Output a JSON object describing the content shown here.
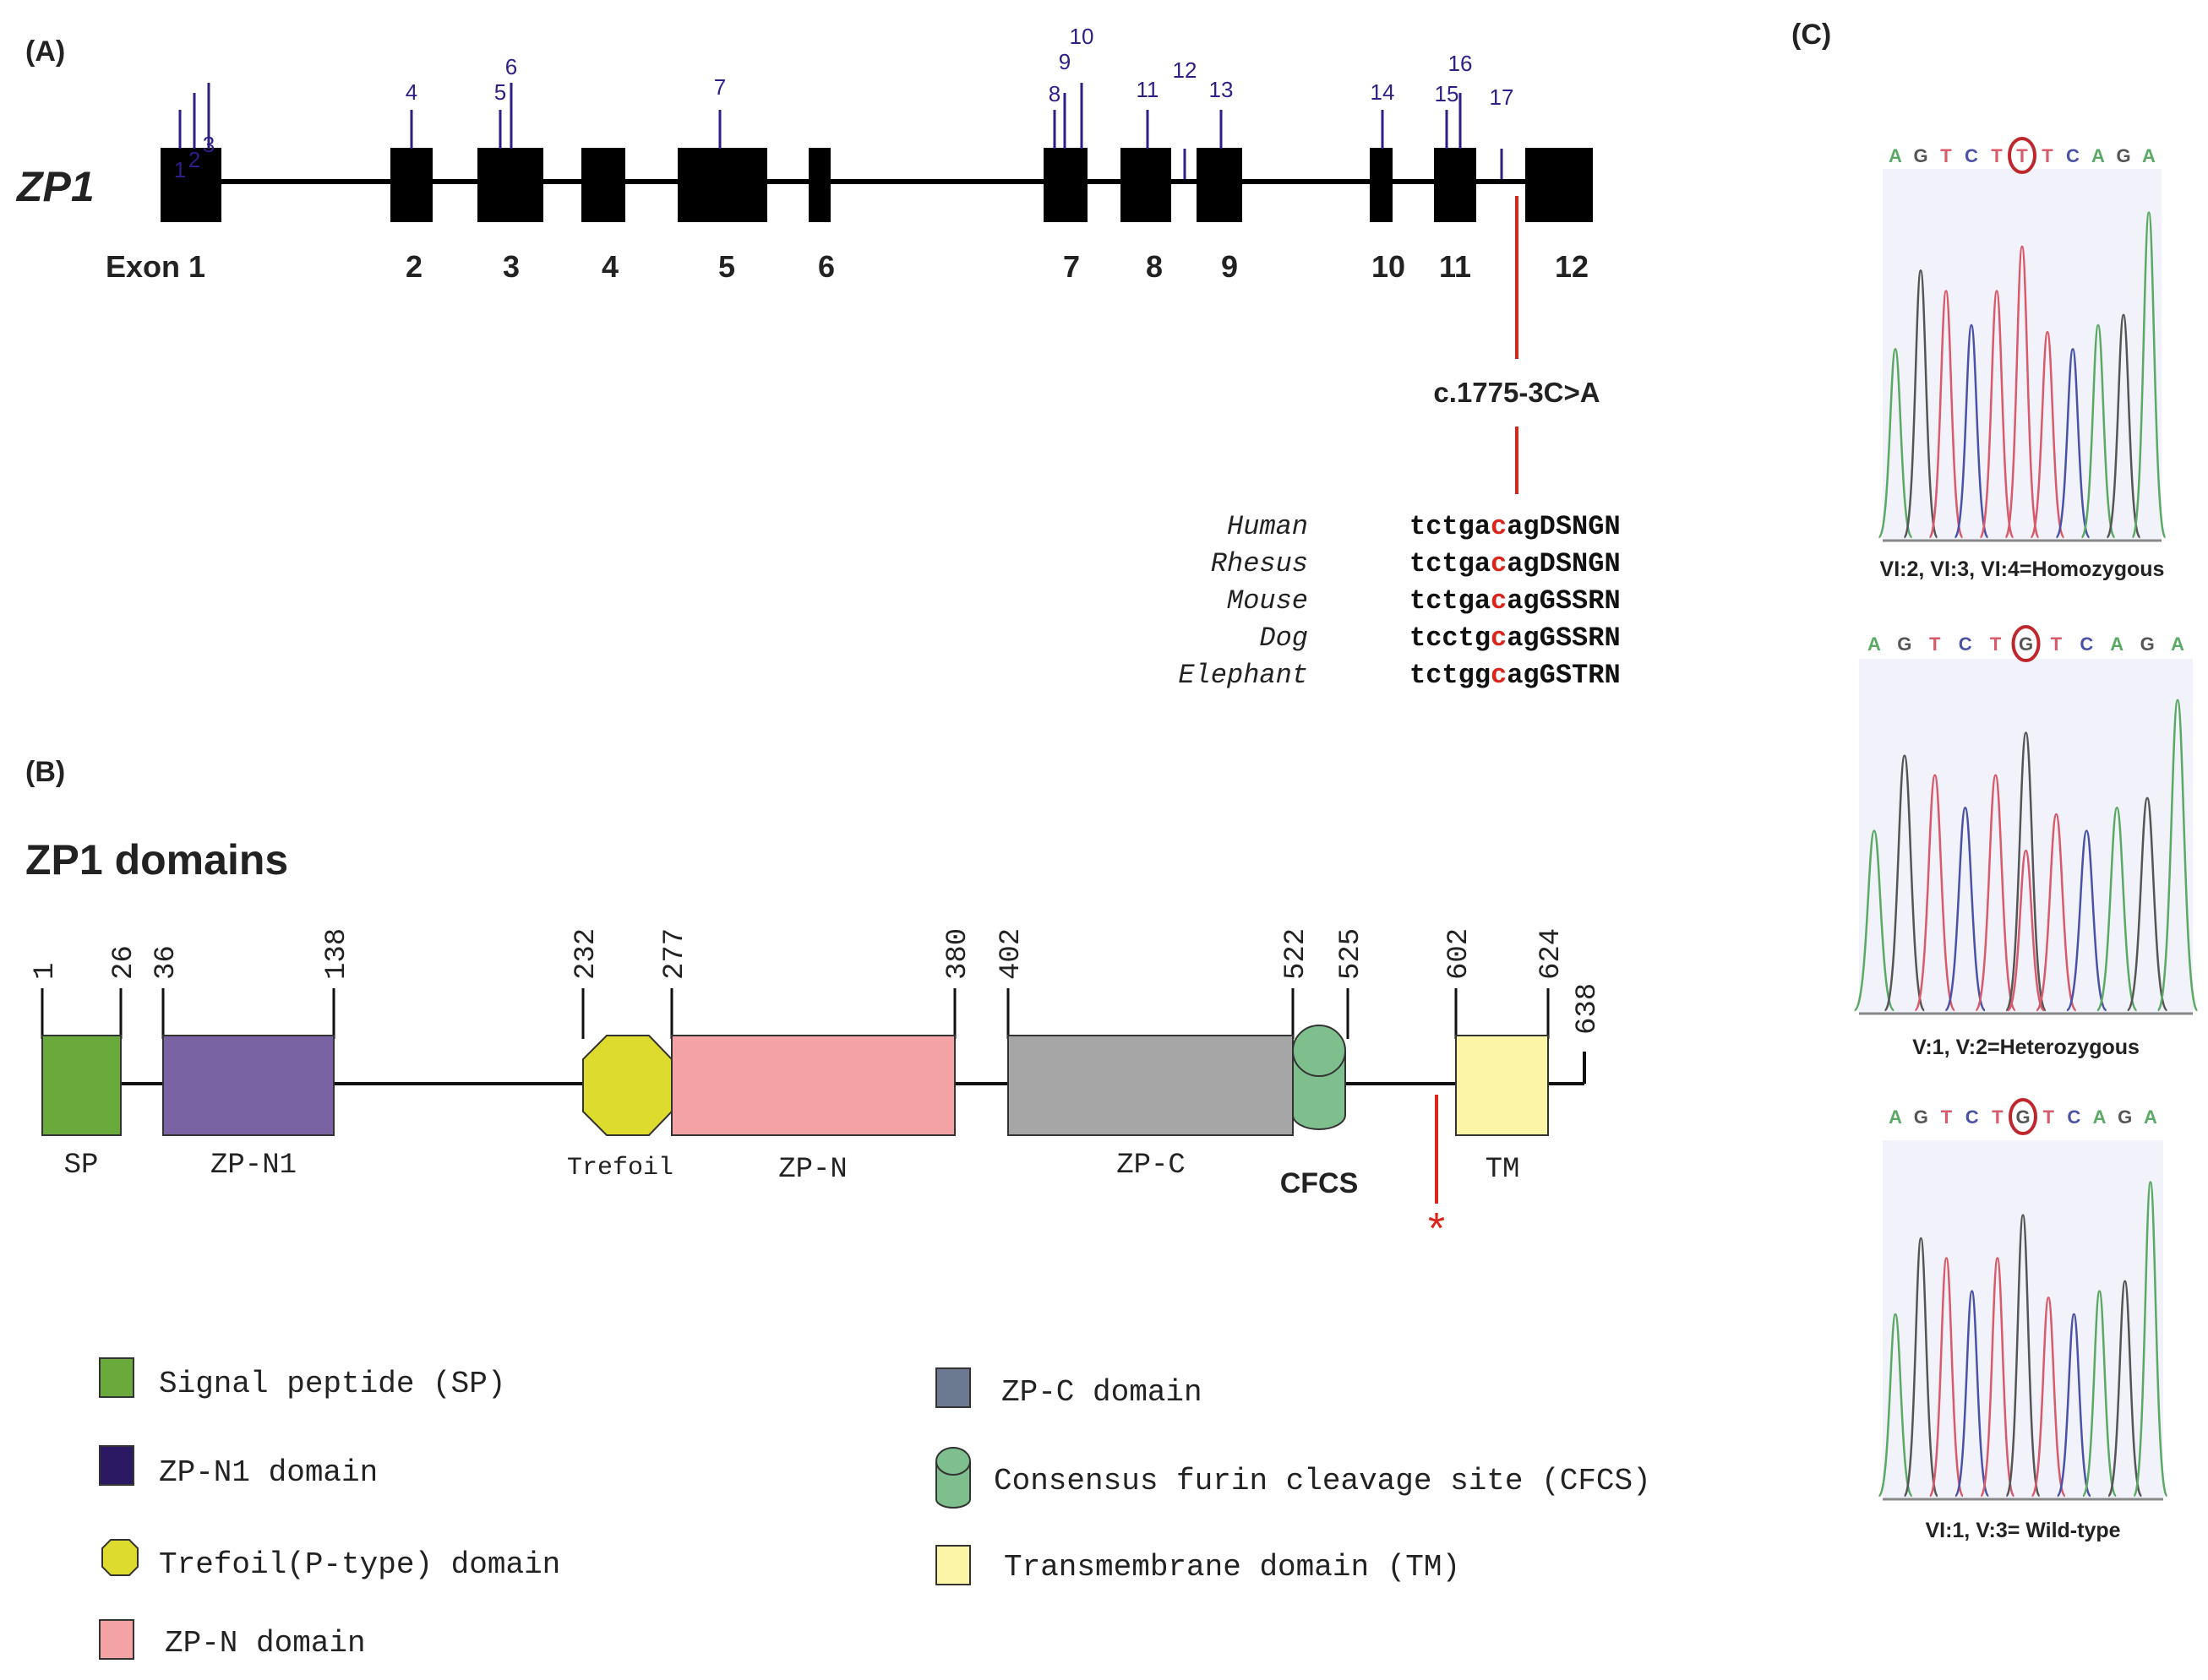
{
  "panels": {
    "a": "(A)",
    "b": "(B)",
    "c": "(C)"
  },
  "colors": {
    "exon": "#000000",
    "site_line": "#2e1f86",
    "mutation": "#d9251c",
    "sp": "#6aaa3c",
    "zpn1": "#7a63a3",
    "zpn1_legend": "#2b1a63",
    "trefoil": "#dcdb2e",
    "zpn": "#f3a3a6",
    "zpc": "#a6a6a6",
    "zpc_legend": "#6b7a91",
    "cfcs": "#7fbf8d",
    "tm": "#fdf5a6",
    "trace_A": "#5aa964",
    "trace_C": "#4a52a8",
    "trace_G": "#555555",
    "trace_T": "#d95a6a",
    "trace_bg": "#e8e8f6"
  },
  "gene": {
    "name": "ZP1",
    "exon_first_label": "Exon 1",
    "exons": [
      "2",
      "3",
      "4",
      "5",
      "6",
      "7",
      "8",
      "9",
      "10",
      "11",
      "12"
    ],
    "sites": [
      "1",
      "2",
      "3",
      "4",
      "5",
      "6",
      "7",
      "8",
      "9",
      "10",
      "11",
      "12",
      "13",
      "14",
      "15",
      "16",
      "17"
    ],
    "mutation": "c.1775-3C>A",
    "alignment": [
      {
        "species": "Human",
        "pre": "tctga",
        "base": "c",
        "post": "agDSNGN"
      },
      {
        "species": "Rhesus",
        "pre": "tctga",
        "base": "c",
        "post": "agDSNGN"
      },
      {
        "species": "Mouse",
        "pre": "tctga",
        "base": "c",
        "post": "agGSSRN"
      },
      {
        "species": "Dog",
        "pre": "tcctg",
        "base": "c",
        "post": "agGSSRN"
      },
      {
        "species": "Elephant",
        "pre": "tctgg",
        "base": "c",
        "post": "agGSTRN"
      }
    ]
  },
  "domains_panel": {
    "title": "ZP1 domains",
    "protein_length": 638,
    "positions": [
      "1",
      "26",
      "36",
      "138",
      "232",
      "277",
      "380",
      "402",
      "522",
      "525",
      "602",
      "624",
      "638"
    ],
    "domains": [
      {
        "key": "sp",
        "label": "SP",
        "start": 1,
        "end": 26
      },
      {
        "key": "zpn1",
        "label": "ZP-N1",
        "start": 36,
        "end": 138
      },
      {
        "key": "trefoil",
        "label": "Trefoil",
        "start": 232,
        "end": 277
      },
      {
        "key": "zpn",
        "label": "ZP-N",
        "start": 277,
        "end": 380
      },
      {
        "key": "zpc",
        "label": "ZP-C",
        "start": 402,
        "end": 522
      },
      {
        "key": "cfcs",
        "label": "CFCS",
        "start": 522,
        "end": 525
      },
      {
        "key": "tm",
        "label": "TM",
        "start": 602,
        "end": 624
      }
    ],
    "mutation_star": "*",
    "legend": {
      "sp": "Signal peptide (SP)",
      "zpn1": "ZP-N1 domain",
      "trefoil": "Trefoil(P-type) domain",
      "zpn": "ZP-N domain",
      "zpc": "ZP-C domain",
      "cfcs": "Consensus furin cleavage site (CFCS)",
      "tm": "Transmembrane domain (TM)"
    }
  },
  "chromatograms": [
    {
      "bases": [
        "A",
        "G",
        "T",
        "C",
        "T",
        "T",
        "T",
        "C",
        "A",
        "G",
        "A"
      ],
      "marked": 5,
      "caption": "VI:2, VI:3, VI:4=Homozygous"
    },
    {
      "bases": [
        "A",
        "G",
        "T",
        "C",
        "T",
        "G",
        "T",
        "C",
        "A",
        "G",
        "A"
      ],
      "marked": 5,
      "caption": "V:1, V:2=Heterozygous"
    },
    {
      "bases": [
        "A",
        "G",
        "T",
        "C",
        "T",
        "G",
        "T",
        "C",
        "A",
        "G",
        "A"
      ],
      "marked": 5,
      "caption": "VI:1, V:3= Wild-type"
    }
  ]
}
